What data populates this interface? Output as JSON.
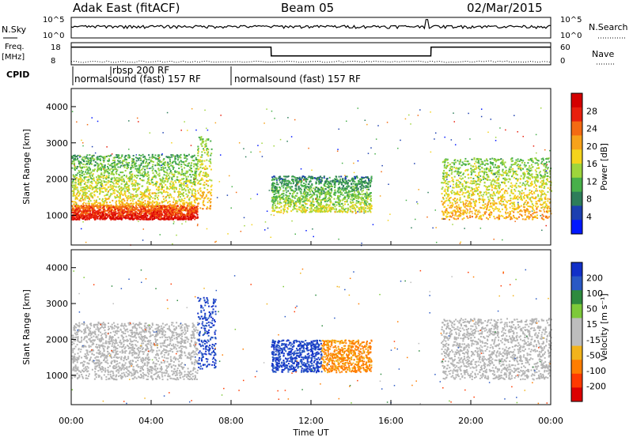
{
  "header": {
    "station": "Adak East (fitACF)",
    "beam": "Beam 05",
    "date": "02/Mar/2015"
  },
  "nsky_panel": {
    "left_label": "N.Sky",
    "right_label": "N.Search",
    "left_ticks": [
      "10^5",
      "10^0"
    ],
    "right_ticks": [
      "10^5",
      "10^0"
    ]
  },
  "freq_panel": {
    "left_label_line1": "Freq.",
    "left_label_line2": "[MHz]",
    "right_label": "Nave",
    "left_ticks": [
      "18",
      "8"
    ],
    "right_ticks": [
      "60",
      "0"
    ]
  },
  "cpid": {
    "label": "CPID",
    "segments": [
      {
        "text": "normalsound (fast) 157 RF",
        "start": 0.0
      },
      {
        "text": "rbsp 200 RF",
        "start": 2.0
      },
      {
        "text": "normalsound (fast) 157 RF",
        "start": 8.0
      }
    ]
  },
  "power_panel": {
    "ylabel": "Slant Range [km]",
    "colorbar_label": "Power [dB]",
    "colorbar_ticks": [
      "28",
      "24",
      "20",
      "16",
      "12",
      "8",
      "4"
    ]
  },
  "velocity_panel": {
    "ylabel": "Slant Range [km]",
    "colorbar_label": "Velocity [m s⁻¹]",
    "colorbar_ticks": [
      "200",
      "100",
      "50",
      "15",
      "-15",
      "-50",
      "-100",
      "-200"
    ]
  },
  "xaxis": {
    "label": "Time UT",
    "ticks": [
      "00:00",
      "04:00",
      "08:00",
      "12:00",
      "16:00",
      "20:00",
      "00:00"
    ]
  },
  "colors": {
    "power_scale": [
      "#0018ff",
      "#1c3fb0",
      "#2e7d5a",
      "#48b04a",
      "#9ed53c",
      "#f4d31c",
      "#f7a21a",
      "#f46a12",
      "#e8200e",
      "#d40000"
    ],
    "velocity_scale": [
      "#dc0000",
      "#ff3a00",
      "#ff7d00",
      "#f2b31c",
      "#bdbdbd",
      "#bdbdbd",
      "#7dc93a",
      "#2e8a3e",
      "#2a59c4",
      "#1230c8"
    ],
    "ground_scatter": "#b4b4b4"
  },
  "chart_data": [
    {
      "type": "heatmap",
      "title": "Power",
      "xlabel": "Time UT",
      "ylabel": "Slant Range [km]",
      "xlim": [
        0,
        24
      ],
      "ylim": [
        180,
        4500
      ],
      "colorbar": {
        "label": "Power [dB]",
        "range": [
          0,
          30
        ],
        "ticks": [
          4,
          8,
          12,
          16,
          20,
          24,
          28
        ]
      },
      "scatter_bands": [
        {
          "t_start": 0.0,
          "t_end": 6.3,
          "range_low": 900,
          "range_high": 1300,
          "power_db": 26
        },
        {
          "t_start": 0.0,
          "t_end": 6.3,
          "range_low": 1300,
          "range_high": 2700,
          "power_db": 12
        },
        {
          "t_start": 6.3,
          "t_end": 7.0,
          "range_low": 1200,
          "range_high": 3200,
          "power_db": 14
        },
        {
          "t_start": 10.0,
          "t_end": 15.0,
          "range_low": 1100,
          "range_high": 2100,
          "power_db": 10
        },
        {
          "t_start": 18.5,
          "t_end": 24.0,
          "range_low": 900,
          "range_high": 2600,
          "power_db": 14
        }
      ]
    },
    {
      "type": "heatmap",
      "title": "Velocity",
      "xlabel": "Time UT",
      "ylabel": "Slant Range [km]",
      "xlim": [
        0,
        24
      ],
      "ylim": [
        180,
        4500
      ],
      "colorbar": {
        "label": "Velocity [m s⁻¹]",
        "ticks": [
          200,
          100,
          50,
          15,
          -15,
          -50,
          -100,
          -200
        ]
      },
      "scatter_bands": [
        {
          "t_start": 0.0,
          "t_end": 6.3,
          "range_low": 900,
          "range_high": 2500,
          "class": "ground"
        },
        {
          "t_start": 6.3,
          "t_end": 7.2,
          "range_low": 1200,
          "range_high": 3200,
          "velocity": 200
        },
        {
          "t_start": 10.0,
          "t_end": 12.5,
          "range_low": 1100,
          "range_high": 2000,
          "velocity": 200
        },
        {
          "t_start": 12.5,
          "t_end": 15.0,
          "range_low": 1100,
          "range_high": 2000,
          "velocity": -60
        },
        {
          "t_start": 18.5,
          "t_end": 24.0,
          "range_low": 900,
          "range_high": 2600,
          "class": "ground"
        }
      ]
    },
    {
      "type": "line",
      "title": "N.Sky",
      "x": [
        0,
        10,
        17.8,
        18,
        24
      ],
      "y_scale": "log",
      "ylim": [
        1,
        100000
      ],
      "values": [
        300,
        700,
        800,
        30000,
        300
      ]
    },
    {
      "type": "line",
      "title": "Freq.",
      "ylim": [
        8,
        18
      ],
      "x": [
        0,
        10,
        10.01,
        18,
        18.01,
        24
      ],
      "values": [
        16,
        16,
        12,
        12,
        16,
        16
      ]
    }
  ]
}
